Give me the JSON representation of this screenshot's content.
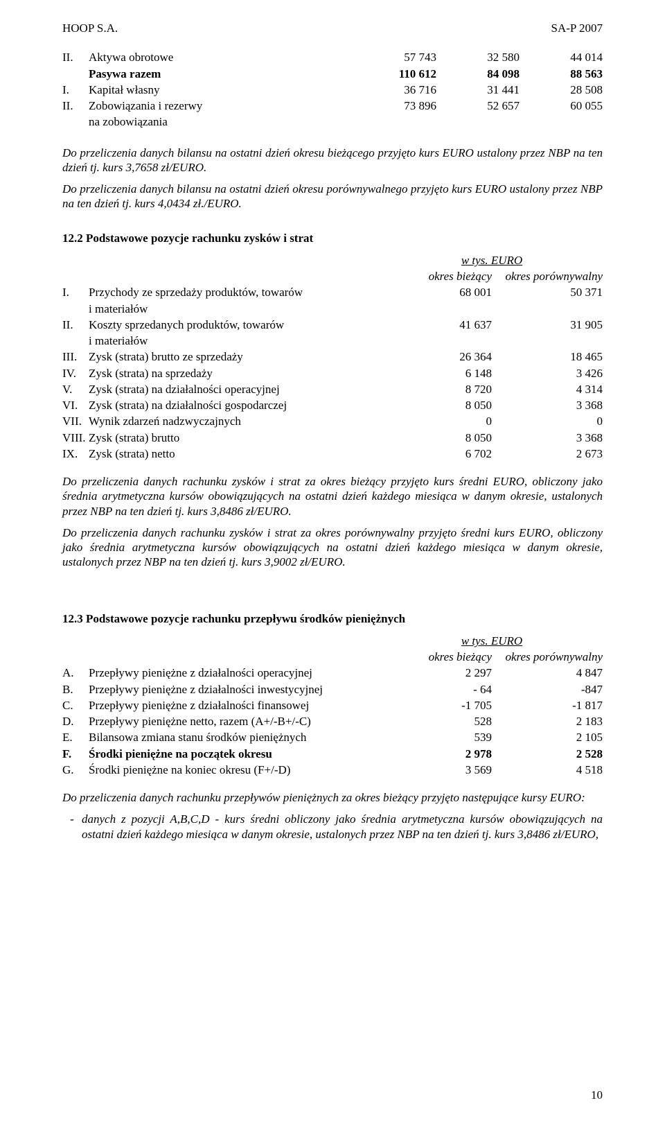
{
  "header": {
    "left": "HOOP S.A.",
    "right": "SA-P 2007"
  },
  "balance_rows": [
    {
      "rn": "II.",
      "label": "Aktywa obrotowe",
      "v1": "57 743",
      "v2": "32 580",
      "v3": "44 014",
      "bold": false
    },
    {
      "rn": "",
      "label": "Pasywa razem",
      "v1": "110 612",
      "v2": "84 098",
      "v3": "88 563",
      "bold": true
    },
    {
      "rn": "I.",
      "label": "Kapitał własny",
      "v1": "36 716",
      "v2": "31 441",
      "v3": "28 508",
      "bold": false
    },
    {
      "rn": "II.",
      "label": "Zobowiązania i rezerwy",
      "v1": "73 896",
      "v2": "52 657",
      "v3": "60 055",
      "bold": false
    },
    {
      "rn": "",
      "label": "na zobowiązania",
      "v1": "",
      "v2": "",
      "v3": "",
      "bold": false
    }
  ],
  "balance_note1": "Do przeliczenia danych bilansu na ostatni dzień okresu bieżącego przyjęto kurs EURO ustalony przez NBP na ten dzień tj. kurs 3,7658  zł/EURO.",
  "balance_note2": "Do przeliczenia danych bilansu na ostatni dzień okresu porównywalnego przyjęto kurs EURO ustalony przez NBP na ten dzień tj. kurs 4,0434  zł./EURO.",
  "sec12_2_title": "12.2 Podstawowe pozycje rachunku zysków i strat",
  "wtys_euro": "w tys. EURO",
  "col_biezacy": "okres bieżący",
  "col_porown": "okres porównywalny",
  "pnl_rows": [
    {
      "rn": "I.",
      "label": "Przychody ze sprzedaży produktów, towarów",
      "v1": "68 001",
      "v2": "50 371"
    },
    {
      "rn": "",
      "label": "i materiałów",
      "v1": "",
      "v2": ""
    },
    {
      "rn": "II.",
      "label": "Koszty sprzedanych produktów, towarów",
      "v1": "41 637",
      "v2": "31 905"
    },
    {
      "rn": "",
      "label": "i materiałów",
      "v1": "",
      "v2": ""
    },
    {
      "rn": "III.",
      "label": "Zysk (strata) brutto ze sprzedaży",
      "v1": "26 364",
      "v2": "18 465"
    },
    {
      "rn": "IV.",
      "label": "Zysk (strata) na sprzedaży",
      "v1": "6 148",
      "v2": "3 426"
    },
    {
      "rn": "V.",
      "label": "Zysk (strata) na działalności operacyjnej",
      "v1": "8 720",
      "v2": "4 314"
    },
    {
      "rn": "VI.",
      "label": "Zysk (strata) na działalności gospodarczej",
      "v1": "8 050",
      "v2": "3 368"
    },
    {
      "rn": "VII.",
      "label": "Wynik zdarzeń nadzwyczajnych",
      "v1": "0",
      "v2": "0"
    },
    {
      "rn": "VIII.",
      "label": "Zysk (strata) brutto",
      "v1": "8 050",
      "v2": "3 368"
    },
    {
      "rn": "IX.",
      "label": "Zysk (strata) netto",
      "v1": "6 702",
      "v2": "2 673"
    }
  ],
  "pnl_note1": "Do przeliczenia danych rachunku zysków i strat za okres bieżący  przyjęto kurs średni EURO, obliczony jako średnia arytmetyczna kursów obowiązujących na ostatni dzień każdego miesiąca w danym okresie, ustalonych przez NBP na ten dzień tj. kurs  3,8486  zł/EURO.",
  "pnl_note2": "Do przeliczenia danych rachunku zysków i strat za okres porównywalny  przyjęto  średni kurs EURO, obliczony jako średnia arytmetyczna kursów obowiązujących na ostatni dzień każdego miesiąca w danym okresie, ustalonych przez NBP na ten dzień tj. kurs 3,9002  zł/EURO.",
  "sec12_3_title": "12.3 Podstawowe pozycje rachunku przepływu środków pieniężnych",
  "cf_rows": [
    {
      "rn": "A.",
      "label": "Przepływy pieniężne z działalności operacyjnej",
      "v1": "2 297",
      "v2": "4 847",
      "bold": false
    },
    {
      "rn": "B.",
      "label": "Przepływy pieniężne z działalności inwestycyjnej",
      "v1": "- 64",
      "v2": "-847",
      "bold": false
    },
    {
      "rn": "C.",
      "label": "Przepływy pieniężne z działalności finansowej",
      "v1": "-1 705",
      "v2": "-1 817",
      "bold": false
    },
    {
      "rn": "D.",
      "label": "Przepływy pieniężne netto, razem (A+/-B+/-C)",
      "v1": "528",
      "v2": "2 183",
      "bold": false
    },
    {
      "rn": "E.",
      "label": "Bilansowa zmiana stanu środków pieniężnych",
      "v1": "539",
      "v2": "2 105",
      "bold": false
    },
    {
      "rn": "F.",
      "label": "Środki pieniężne na początek okresu",
      "v1": "2 978",
      "v2": "2 528",
      "bold": true
    },
    {
      "rn": "G.",
      "label": "Środki pieniężne na koniec okresu (F+/-D)",
      "v1": "3 569",
      "v2": "4 518",
      "bold": false
    }
  ],
  "cf_note_intro": "Do przeliczenia danych rachunku przepływów pieniężnych za okres bieżący przyjęto następujące kursy EURO:",
  "cf_note_bullet": "danych z pozycji A,B,C,D - kurs średni obliczony jako średnia arytmetyczna kursów obowiązujących na ostatni dzień każdego miesiąca w danym okresie, ustalonych przez NBP na ten dzień tj. kurs 3,8486  zł/EURO,",
  "dash": "-",
  "page_number": "10",
  "colors": {
    "text": "#000000",
    "background": "#ffffff"
  },
  "typography": {
    "font_family": "Times New Roman",
    "base_size_pt": 12
  }
}
